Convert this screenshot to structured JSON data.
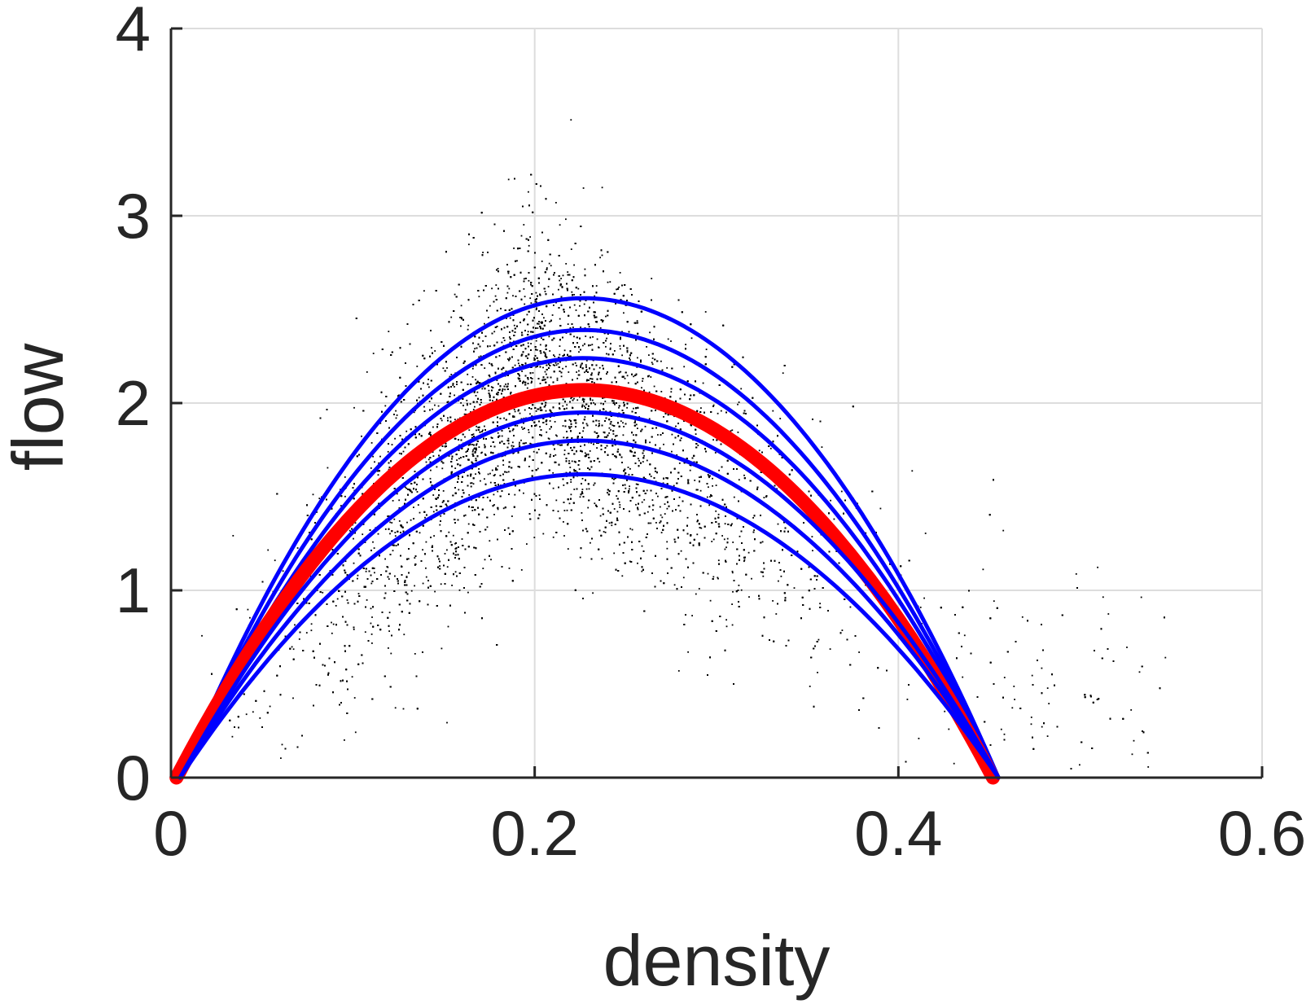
{
  "chart_data": {
    "type": "line",
    "xlabel": "density",
    "ylabel": "flow",
    "xlim": [
      0,
      0.6
    ],
    "ylim": [
      0,
      4
    ],
    "xticks": [
      0,
      0.2,
      0.4,
      0.6
    ],
    "xtick_labels": [
      "0",
      "0.2",
      "0.4",
      "0.6"
    ],
    "yticks": [
      0,
      1,
      2,
      3,
      4
    ],
    "ytick_labels": [
      "0",
      "1",
      "2",
      "3",
      "4"
    ],
    "grid": true,
    "scatter": {
      "color": "#000000",
      "approx_peak_density": 0.2,
      "approx_peak_flow": 2.2,
      "approx_density_range": [
        0.0,
        0.59
      ],
      "approx_flow_range": [
        0.0,
        4.0
      ]
    },
    "series": [
      {
        "color": "#0000ff",
        "lineWidth": 5,
        "x": [
          0.005,
          0.227,
          0.455
        ],
        "y": [
          0.0,
          2.56,
          0.0
        ]
      },
      {
        "color": "#0000ff",
        "lineWidth": 5,
        "x": [
          0.005,
          0.227,
          0.455
        ],
        "y": [
          0.0,
          2.39,
          0.0
        ]
      },
      {
        "color": "#0000ff",
        "lineWidth": 5,
        "x": [
          0.005,
          0.227,
          0.455
        ],
        "y": [
          0.0,
          2.24,
          0.0
        ]
      },
      {
        "color": "#ff0000",
        "lineWidth": 17,
        "x": [
          0.003,
          0.227,
          0.452
        ],
        "y": [
          0.0,
          2.07,
          0.0
        ]
      },
      {
        "color": "#0000ff",
        "lineWidth": 5,
        "x": [
          0.005,
          0.227,
          0.455
        ],
        "y": [
          0.0,
          1.95,
          0.0
        ]
      },
      {
        "color": "#0000ff",
        "lineWidth": 5,
        "x": [
          0.005,
          0.227,
          0.455
        ],
        "y": [
          0.0,
          1.8,
          0.0
        ]
      },
      {
        "color": "#0000ff",
        "lineWidth": 5,
        "x": [
          0.005,
          0.227,
          0.455
        ],
        "y": [
          0.0,
          1.62,
          0.0
        ]
      }
    ]
  }
}
